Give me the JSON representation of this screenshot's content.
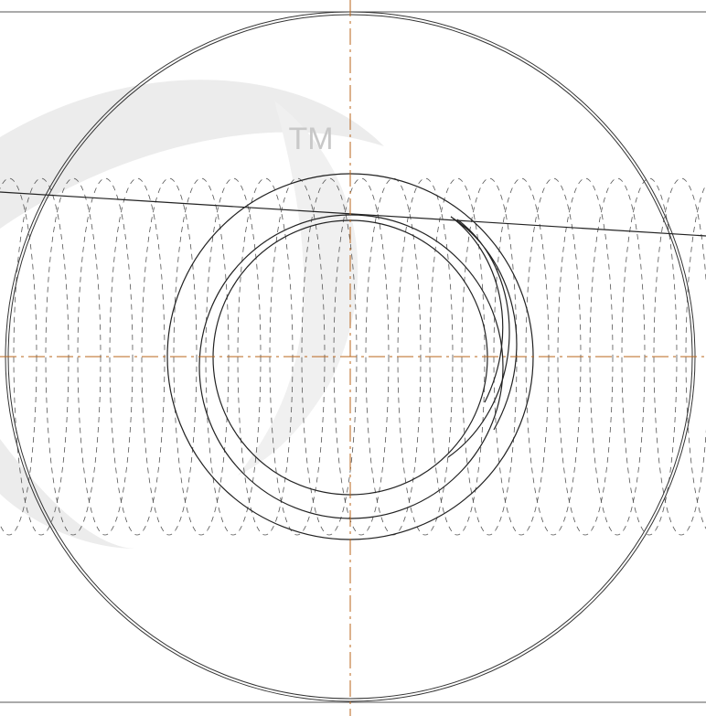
{
  "watermark": "TM"
}
